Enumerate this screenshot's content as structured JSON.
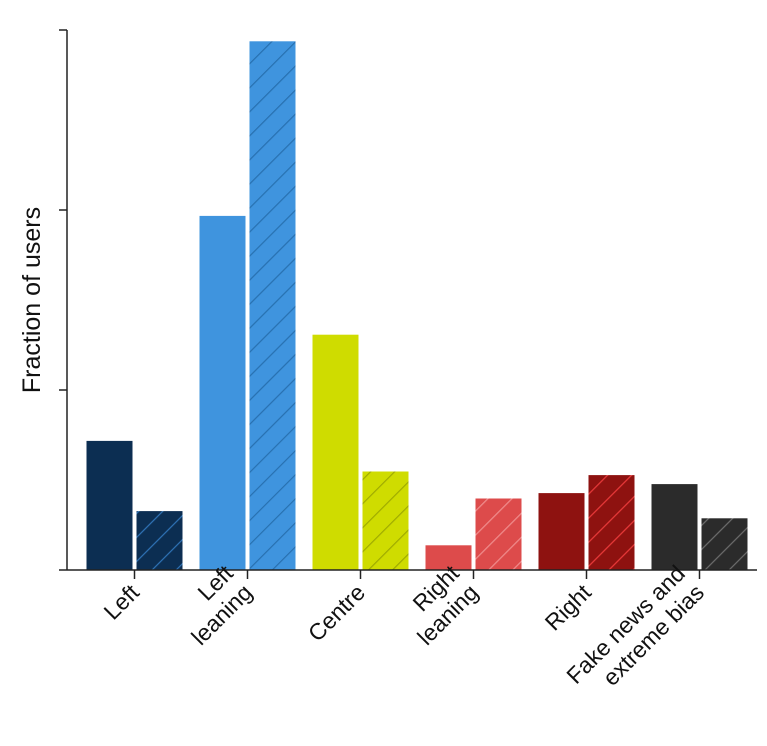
{
  "chart_data": {
    "type": "bar",
    "title": "",
    "xlabel": "",
    "ylabel": "Fraction of users",
    "ylim": [
      0,
      3
    ],
    "grid": false,
    "legend": "none",
    "categories": [
      [
        "Left"
      ],
      [
        "Left",
        "leaning"
      ],
      [
        "Centre"
      ],
      [
        "Right",
        "leaning"
      ],
      [
        "Right"
      ],
      [
        "Fake news and",
        "extreme bias"
      ]
    ],
    "series": [
      {
        "pattern": "solid",
        "values": [
          0.72,
          1.97,
          1.31,
          0.14,
          0.43,
          0.48
        ]
      },
      {
        "pattern": "hatched",
        "values": [
          0.33,
          2.94,
          0.55,
          0.4,
          0.53,
          0.29
        ]
      }
    ],
    "colors": [
      "#0c2e52",
      "#3f94de",
      "#cfdc00",
      "#dd4b4b",
      "#8e1210",
      "#2b2b2b"
    ],
    "hatch_colors": [
      "#2f73b7",
      "#2770b0",
      "#9fab00",
      "#f08e8e",
      "#ea3a3a",
      "#6d6d6d"
    ],
    "bar_edge_color": "#ffffff"
  }
}
